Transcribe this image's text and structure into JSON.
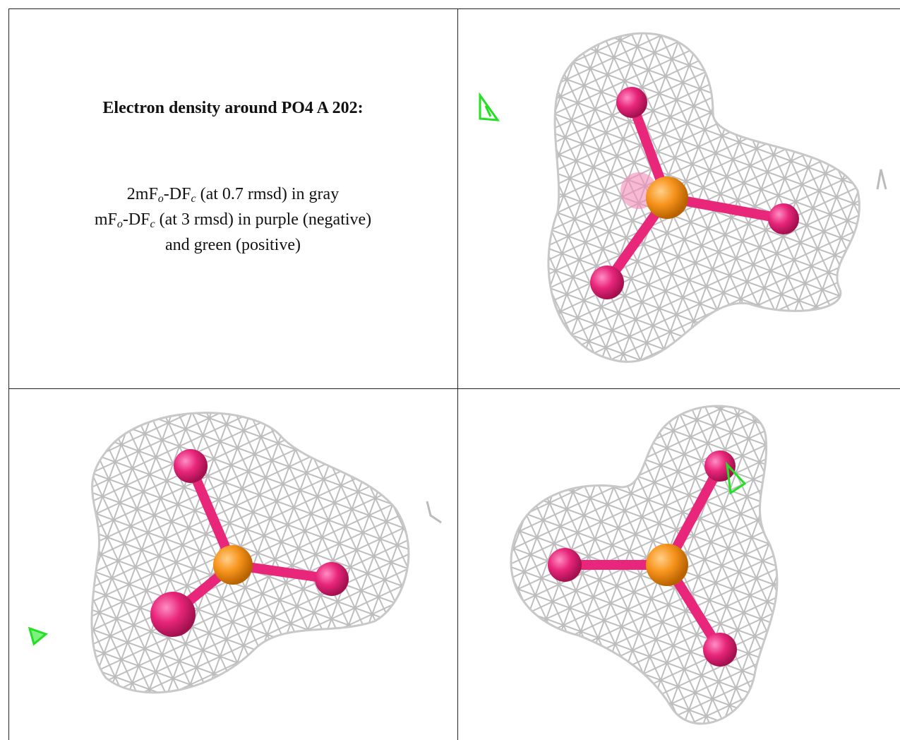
{
  "caption": {
    "title": "Electron density around PO4 A 202:",
    "lines": [
      [
        "2mF",
        "o",
        "-DF",
        "c",
        " (at 0.7 rmsd) in gray"
      ],
      [
        "mF",
        "o",
        "-DF",
        "c",
        " (at 3 rmsd) in purple (negative)"
      ],
      [
        "and green (positive)"
      ]
    ]
  }
}
